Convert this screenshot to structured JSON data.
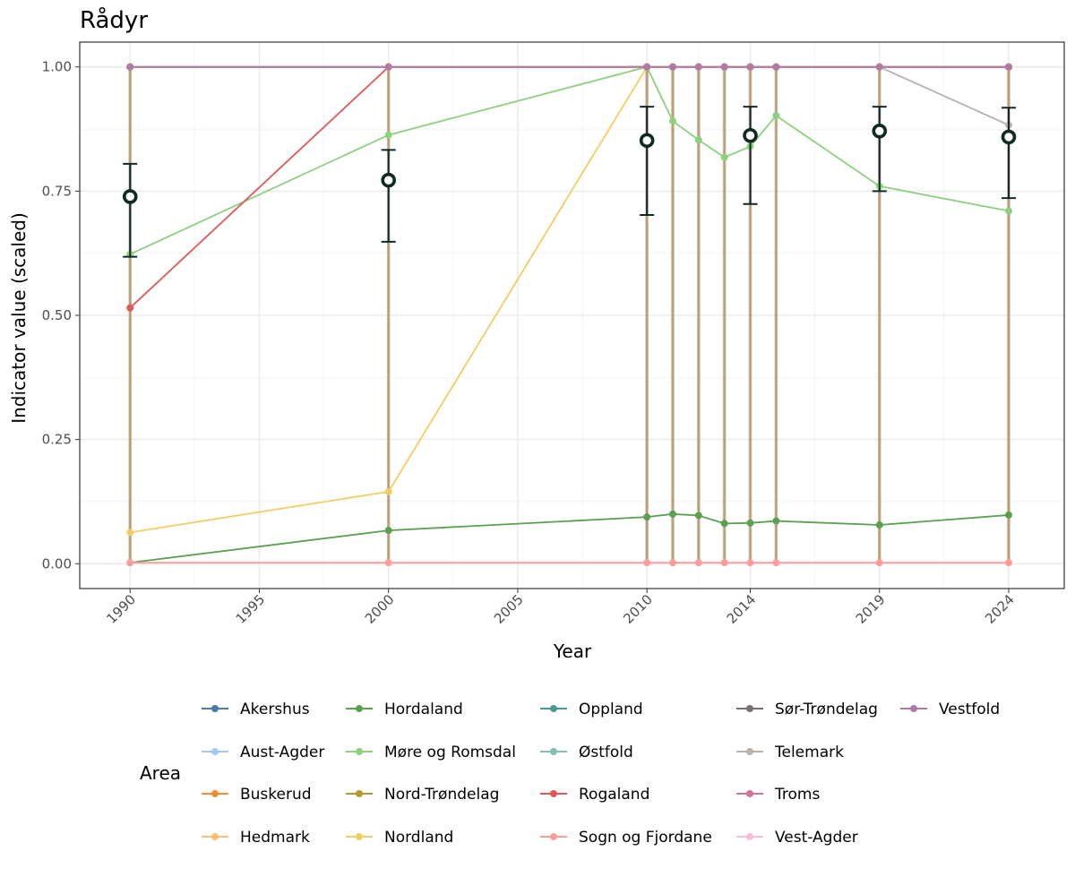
{
  "chart_data": {
    "type": "line",
    "title": "Rådyr",
    "xlabel": "Year",
    "ylabel": "Indicator value (scaled)",
    "xlim": [
      1988.05,
      2026.15
    ],
    "ylim": [
      -0.05,
      1.05
    ],
    "x_ticks": [
      1990,
      1995,
      2000,
      2005,
      2010,
      2014,
      2019,
      2024
    ],
    "y_ticks": [
      0.0,
      0.25,
      0.5,
      0.75,
      1.0
    ],
    "y_tick_labels": [
      "0.00",
      "0.25",
      "0.50",
      "0.75",
      "1.00"
    ],
    "grid": true,
    "legend": {
      "title": "Area",
      "position": "bottom",
      "columns": 5
    },
    "series": [
      {
        "name": "Akershus",
        "color": "#4e79a7",
        "x": [
          1990,
          2000,
          2010,
          2011,
          2012,
          2013,
          2014,
          2015,
          2019,
          2024
        ],
        "y": [
          1.0,
          1.0,
          1.0,
          1.0,
          1.0,
          1.0,
          1.0,
          1.0,
          1.0,
          1.0
        ]
      },
      {
        "name": "Aust-Agder",
        "color": "#a0cbe8",
        "x": [
          1990,
          2000,
          2010,
          2011,
          2012,
          2013,
          2014,
          2015,
          2019,
          2024
        ],
        "y": [
          1.0,
          1.0,
          1.0,
          1.0,
          1.0,
          1.0,
          1.0,
          1.0,
          1.0,
          1.0
        ]
      },
      {
        "name": "Buskerud",
        "color": "#f28e2b",
        "x": [
          1990,
          2000,
          2010,
          2011,
          2012,
          2013,
          2014,
          2015,
          2019,
          2024
        ],
        "y": [
          1.0,
          1.0,
          1.0,
          1.0,
          1.0,
          1.0,
          1.0,
          1.0,
          1.0,
          1.0
        ]
      },
      {
        "name": "Hedmark",
        "color": "#ffbe7d",
        "x": [
          1990,
          2000,
          2010,
          2011,
          2012,
          2013,
          2014,
          2015,
          2019,
          2024
        ],
        "y": [
          1.0,
          1.0,
          1.0,
          1.0,
          1.0,
          1.0,
          1.0,
          1.0,
          1.0,
          1.0
        ]
      },
      {
        "name": "Hordaland",
        "color": "#59a14f",
        "x": [
          1990,
          2000,
          2010,
          2011,
          2012,
          2013,
          2014,
          2015,
          2019,
          2024
        ],
        "y": [
          0.002,
          0.067,
          0.094,
          0.1,
          0.097,
          0.081,
          0.082,
          0.086,
          0.078,
          0.098
        ]
      },
      {
        "name": "Møre og Romsdal",
        "color": "#8cd17d",
        "x": [
          1990,
          2000,
          2010,
          2011,
          2012,
          2013,
          2014,
          2015,
          2019,
          2024
        ],
        "y": [
          0.623,
          0.863,
          1.0,
          0.891,
          0.853,
          0.818,
          0.84,
          0.902,
          0.76,
          0.71
        ]
      },
      {
        "name": "Nord-Trøndelag",
        "color": "#b6992d",
        "x": [
          1990,
          2000,
          2010,
          2011,
          2012,
          2013,
          2014,
          2015,
          2019,
          2024
        ],
        "y": [
          1.0,
          1.0,
          1.0,
          1.0,
          1.0,
          1.0,
          1.0,
          1.0,
          1.0,
          1.0
        ]
      },
      {
        "name": "Nordland",
        "color": "#f1ce63",
        "x": [
          1990,
          2000,
          2010,
          2011,
          2012,
          2013,
          2014,
          2015,
          2019,
          2024
        ],
        "y": [
          0.063,
          0.145,
          1.0,
          1.0,
          1.0,
          1.0,
          1.0,
          1.0,
          1.0,
          1.0
        ]
      },
      {
        "name": "Oppland",
        "color": "#499894",
        "x": [
          1990,
          2000,
          2010,
          2011,
          2012,
          2013,
          2014,
          2015,
          2019,
          2024
        ],
        "y": [
          1.0,
          1.0,
          1.0,
          1.0,
          1.0,
          1.0,
          1.0,
          1.0,
          1.0,
          1.0
        ]
      },
      {
        "name": "Østfold",
        "color": "#86bcb6",
        "x": [
          1990,
          2000,
          2010,
          2011,
          2012,
          2013,
          2014,
          2015,
          2019,
          2024
        ],
        "y": [
          1.0,
          1.0,
          1.0,
          1.0,
          1.0,
          1.0,
          1.0,
          1.0,
          1.0,
          1.0
        ]
      },
      {
        "name": "Rogaland",
        "color": "#e15759",
        "x": [
          1990,
          2000,
          2010,
          2011,
          2012,
          2013,
          2014,
          2015,
          2019,
          2024
        ],
        "y": [
          0.515,
          1.0,
          1.0,
          1.0,
          1.0,
          1.0,
          1.0,
          1.0,
          1.0,
          1.0
        ]
      },
      {
        "name": "Sogn og Fjordane",
        "color": "#ff9d9a",
        "x": [
          1990,
          2000,
          2010,
          2011,
          2012,
          2013,
          2014,
          2015,
          2019,
          2024
        ],
        "y": [
          0.002,
          0.002,
          0.002,
          0.002,
          0.002,
          0.002,
          0.002,
          0.002,
          0.002,
          0.002
        ]
      },
      {
        "name": "Sør-Trøndelag",
        "color": "#79706e",
        "x": [
          1990,
          2000,
          2010,
          2011,
          2012,
          2013,
          2014,
          2015,
          2019,
          2024
        ],
        "y": [
          1.0,
          1.0,
          1.0,
          1.0,
          1.0,
          1.0,
          1.0,
          1.0,
          1.0,
          1.0
        ]
      },
      {
        "name": "Telemark",
        "color": "#bab0ac",
        "x": [
          1990,
          2000,
          2010,
          2011,
          2012,
          2013,
          2014,
          2015,
          2019,
          2024
        ],
        "y": [
          1.0,
          1.0,
          1.0,
          1.0,
          1.0,
          1.0,
          1.0,
          1.0,
          1.0,
          0.883
        ]
      },
      {
        "name": "Troms",
        "color": "#d37295",
        "x": [
          1990,
          2000,
          2010,
          2011,
          2012,
          2013,
          2014,
          2015,
          2019,
          2024
        ],
        "y": [
          1.0,
          1.0,
          1.0,
          1.0,
          1.0,
          1.0,
          1.0,
          1.0,
          1.0,
          1.0
        ]
      },
      {
        "name": "Vest-Agder",
        "color": "#fabfd2",
        "x": [
          1990,
          2000,
          2010,
          2011,
          2012,
          2013,
          2014,
          2015,
          2019,
          2024
        ],
        "y": [
          1.0,
          1.0,
          1.0,
          1.0,
          1.0,
          1.0,
          1.0,
          1.0,
          1.0,
          1.0
        ]
      },
      {
        "name": "Vestfold",
        "color": "#b07aa1",
        "x": [
          1990,
          2000,
          2010,
          2011,
          2012,
          2013,
          2014,
          2015,
          2019,
          2024
        ],
        "y": [
          1.0,
          1.0,
          1.0,
          1.0,
          1.0,
          1.0,
          1.0,
          1.0,
          1.0,
          1.0
        ]
      }
    ],
    "aggregate": {
      "color": "#0f2a25",
      "x": [
        1990,
        2000,
        2010,
        2014,
        2019,
        2024
      ],
      "y": [
        0.739,
        0.772,
        0.852,
        0.862,
        0.871,
        0.859
      ],
      "lower": [
        0.618,
        0.648,
        0.702,
        0.724,
        0.75,
        0.736
      ],
      "upper": [
        0.805,
        0.833,
        0.92,
        0.92,
        0.92,
        0.918
      ]
    }
  }
}
